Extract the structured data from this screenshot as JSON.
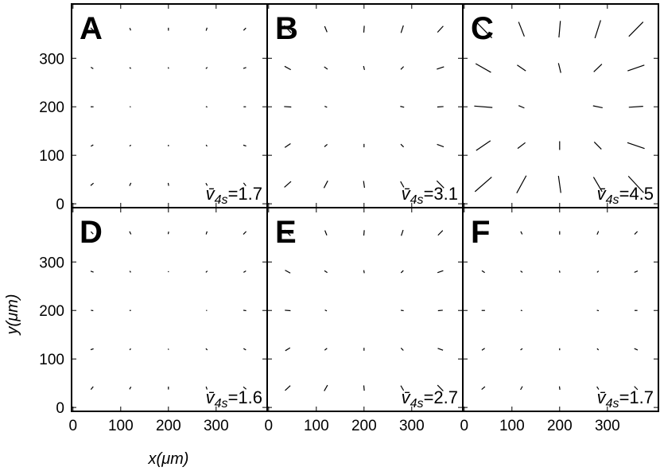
{
  "chart_data": {
    "type": "quiver",
    "xlabel": "x(μm)",
    "ylabel": "y(μm)",
    "xlim": [
      -3,
      407
    ],
    "ylim": [
      -8,
      412
    ],
    "xticks": [
      0,
      100,
      200,
      300
    ],
    "yticks": [
      0,
      100,
      200,
      300
    ],
    "color": "#000000",
    "x": [
      40,
      120,
      200,
      280,
      360,
      40,
      120,
      200,
      280,
      360,
      40,
      120,
      200,
      280,
      360,
      40,
      120,
      200,
      280,
      360,
      40,
      120,
      200,
      280,
      360
    ],
    "y": [
      40,
      40,
      40,
      40,
      40,
      120,
      120,
      120,
      120,
      120,
      200,
      200,
      200,
      200,
      200,
      280,
      280,
      280,
      280,
      280,
      360,
      360,
      360,
      360,
      360
    ],
    "panels": [
      {
        "label": "A",
        "annotation": [
          "v̄",
          "4s",
          "=1.7"
        ],
        "u": [
          -6,
          -3,
          1,
          3,
          5,
          -5,
          -3,
          0,
          2,
          6,
          -6,
          -2,
          0,
          3,
          5,
          -5,
          -3,
          -1,
          3,
          6,
          -6,
          -2,
          0,
          2,
          5
        ],
        "v": [
          -5,
          -6,
          -6,
          -5,
          -6,
          -3,
          -2,
          -3,
          -3,
          -2,
          0,
          1,
          0,
          -1,
          0,
          3,
          2,
          3,
          3,
          2,
          6,
          5,
          6,
          6,
          5
        ]
      },
      {
        "label": "B",
        "annotation": [
          "v̄",
          "4s",
          "=3.1"
        ],
        "u": [
          -14,
          -8,
          2,
          7,
          15,
          -12,
          -6,
          0,
          6,
          14,
          -15,
          -5,
          0,
          8,
          13,
          -13,
          -7,
          -2,
          6,
          15,
          -15,
          -5,
          1,
          5,
          12
        ],
        "v": [
          -12,
          -15,
          -14,
          -12,
          -15,
          -8,
          -5,
          -7,
          -6,
          -5,
          1,
          2,
          0,
          -2,
          1,
          7,
          5,
          8,
          6,
          5,
          15,
          12,
          14,
          15,
          13
        ]
      },
      {
        "label": "C",
        "annotation": [
          "v̄",
          "4s",
          "=4.5"
        ],
        "u": [
          -35,
          -20,
          5,
          18,
          32,
          -30,
          -16,
          0,
          15,
          36,
          -38,
          -12,
          0,
          20,
          30,
          -32,
          -18,
          -5,
          17,
          35,
          -36,
          -12,
          3,
          12,
          30
        ],
        "v": [
          -30,
          -36,
          -35,
          -30,
          -34,
          -20,
          -12,
          -18,
          -15,
          -12,
          3,
          5,
          0,
          -4,
          2,
          18,
          12,
          20,
          16,
          12,
          36,
          30,
          34,
          37,
          30
        ]
      },
      {
        "label": "D",
        "annotation": [
          "v̄",
          "4s",
          "=1.6"
        ],
        "u": [
          -5,
          -3,
          0,
          2,
          6,
          -6,
          -2,
          1,
          3,
          5,
          -5,
          -3,
          0,
          2,
          6,
          -6,
          -2,
          0,
          3,
          5,
          -5,
          -3,
          1,
          2,
          6
        ],
        "v": [
          -6,
          -5,
          -6,
          -6,
          -5,
          -2,
          -3,
          -2,
          -3,
          -3,
          1,
          0,
          0,
          0,
          -1,
          2,
          3,
          2,
          3,
          3,
          5,
          6,
          5,
          6,
          6
        ]
      },
      {
        "label": "E",
        "annotation": [
          "v̄",
          "4s",
          "=2.7"
        ],
        "u": [
          -11,
          -7,
          1,
          6,
          12,
          -10,
          -5,
          0,
          5,
          11,
          -12,
          -4,
          0,
          6,
          10,
          -11,
          -6,
          -1,
          5,
          12,
          -12,
          -4,
          1,
          4,
          10
        ],
        "v": [
          -10,
          -12,
          -11,
          -10,
          -12,
          -6,
          -4,
          -6,
          -5,
          -4,
          1,
          2,
          0,
          -1,
          1,
          6,
          4,
          6,
          5,
          4,
          12,
          10,
          11,
          12,
          10
        ]
      },
      {
        "label": "F",
        "annotation": [
          "v̄",
          "4s",
          "=1.7"
        ],
        "u": [
          -7,
          -4,
          1,
          4,
          7,
          -6,
          -4,
          0,
          3,
          7,
          -7,
          -3,
          0,
          4,
          6,
          -6,
          -4,
          -1,
          3,
          7,
          -7,
          -3,
          0,
          3,
          6
        ],
        "v": [
          -6,
          -7,
          -7,
          -6,
          -7,
          -4,
          -3,
          -4,
          -3,
          -3,
          0,
          1,
          0,
          -1,
          0,
          4,
          3,
          4,
          3,
          3,
          7,
          6,
          7,
          7,
          6
        ]
      }
    ]
  }
}
